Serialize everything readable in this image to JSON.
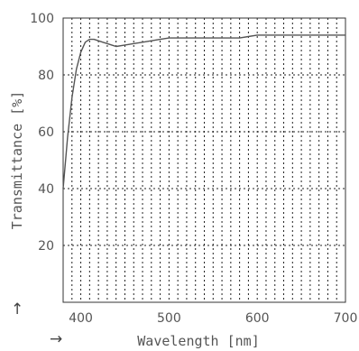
{
  "chart_data": {
    "type": "line",
    "title": "",
    "xlabel": "Wavelength [nm]",
    "ylabel": "Transmittance [%]",
    "xlim": [
      380,
      700
    ],
    "ylim": [
      0,
      100
    ],
    "x_ticks": [
      400,
      500,
      600,
      700
    ],
    "y_ticks": [
      20,
      40,
      60,
      80,
      100
    ],
    "grid": true,
    "grid_x_step": 10,
    "grid_style": "dotted",
    "x_axis_arrow": "→",
    "y_axis_arrow": "↑",
    "series": [
      {
        "x": [
          380,
          385,
          390,
          395,
          400,
          405,
          410,
          415,
          420,
          425,
          430,
          435,
          440,
          450,
          460,
          470,
          480,
          490,
          500,
          520,
          540,
          560,
          580,
          590,
          600,
          620,
          650,
          680,
          700
        ],
        "y": [
          40,
          58,
          72,
          82,
          88,
          91.5,
          92.5,
          92.5,
          92,
          91.5,
          91,
          90.5,
          90,
          90.5,
          91,
          91.5,
          92,
          92.5,
          93,
          93,
          93,
          93,
          93,
          93.5,
          94,
          94,
          94,
          94,
          94
        ]
      }
    ]
  }
}
